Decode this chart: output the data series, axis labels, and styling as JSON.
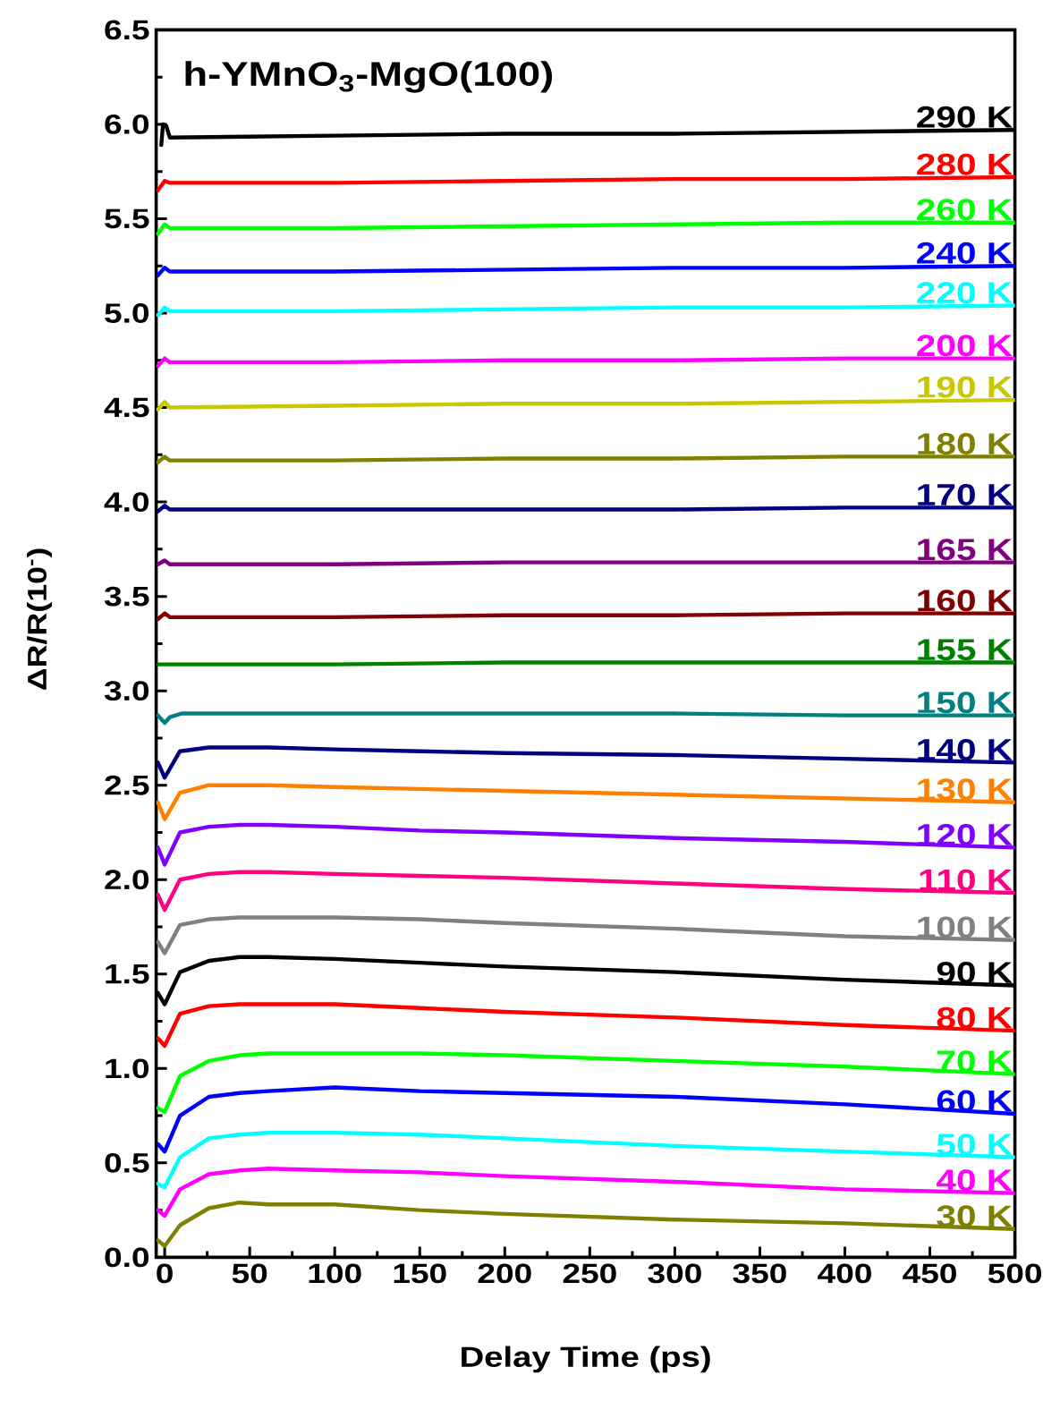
{
  "chart_data": {
    "type": "line",
    "title": "h-YMnO$_{3}$-MgO(100)",
    "xlabel": "Delay Time (ps)",
    "ylabel": "ΔR/R(10$^{-}$)",
    "xlim": [
      -5,
      500
    ],
    "ylim": [
      0,
      6.5
    ],
    "xticks": [
      0,
      50,
      100,
      150,
      200,
      250,
      300,
      350,
      400,
      450,
      500
    ],
    "yticks": [
      {
        "value": 0,
        "label": "0.0"
      },
      0.5,
      {
        "value": 1,
        "label": "1.0"
      },
      1.5,
      {
        "value": 2,
        "label": "2.0"
      },
      2.5,
      {
        "value": 3,
        "label": "3.0"
      },
      3.5,
      {
        "value": 4,
        "label": "4.0"
      },
      4.5,
      {
        "value": 5,
        "label": "5.0"
      },
      5.5,
      {
        "value": 6,
        "label": "6.0"
      },
      6.5
    ],
    "series": [
      {
        "name": "290 K",
        "color": "#000000",
        "x": [
          -2,
          -1,
          1,
          3,
          100,
          200,
          300,
          400,
          500
        ],
        "values": [
          5.89,
          6.0,
          5.99,
          5.93,
          5.94,
          5.95,
          5.95,
          5.96,
          5.97
        ]
      },
      {
        "name": "280 K",
        "color": "#ff0000",
        "x": [
          -4,
          0,
          3,
          100,
          200,
          300,
          400,
          500
        ],
        "values": [
          5.65,
          5.7,
          5.69,
          5.69,
          5.7,
          5.71,
          5.71,
          5.72
        ]
      },
      {
        "name": "260 K",
        "color": "#00ff00",
        "x": [
          -4,
          0,
          3,
          100,
          200,
          300,
          400,
          500
        ],
        "values": [
          5.42,
          5.47,
          5.45,
          5.45,
          5.46,
          5.47,
          5.48,
          5.48
        ]
      },
      {
        "name": "240 K",
        "color": "#0000ff",
        "x": [
          -4,
          0,
          3,
          100,
          200,
          300,
          400,
          500
        ],
        "values": [
          5.2,
          5.24,
          5.22,
          5.22,
          5.23,
          5.24,
          5.24,
          5.25
        ]
      },
      {
        "name": "220 K",
        "color": "#00ffff",
        "x": [
          -4,
          0,
          3,
          100,
          200,
          300,
          400,
          500
        ],
        "values": [
          4.99,
          5.03,
          5.01,
          5.01,
          5.02,
          5.03,
          5.03,
          5.04
        ]
      },
      {
        "name": "200 K",
        "color": "#ff00ff",
        "x": [
          -4,
          0,
          3,
          100,
          200,
          300,
          400,
          500
        ],
        "values": [
          4.72,
          4.76,
          4.74,
          4.74,
          4.75,
          4.75,
          4.76,
          4.76
        ]
      },
      {
        "name": "190 K",
        "color": "#c8c800",
        "x": [
          -4,
          0,
          3,
          100,
          200,
          300,
          400,
          500
        ],
        "values": [
          4.49,
          4.53,
          4.5,
          4.51,
          4.52,
          4.52,
          4.53,
          4.54
        ]
      },
      {
        "name": "180 K",
        "color": "#808000",
        "x": [
          -4,
          0,
          3,
          100,
          200,
          300,
          400,
          500
        ],
        "values": [
          4.21,
          4.24,
          4.22,
          4.22,
          4.23,
          4.23,
          4.24,
          4.24
        ]
      },
      {
        "name": "170 K",
        "color": "#000080",
        "x": [
          -4,
          0,
          3,
          100,
          200,
          300,
          400,
          500
        ],
        "values": [
          3.95,
          3.98,
          3.96,
          3.96,
          3.96,
          3.96,
          3.97,
          3.97
        ]
      },
      {
        "name": "165 K",
        "color": "#800080",
        "x": [
          -4,
          0,
          3,
          100,
          200,
          300,
          400,
          500
        ],
        "values": [
          3.67,
          3.69,
          3.67,
          3.67,
          3.68,
          3.68,
          3.68,
          3.68
        ]
      },
      {
        "name": "160 K",
        "color": "#800000",
        "x": [
          -4,
          0,
          3,
          100,
          200,
          300,
          400,
          500
        ],
        "values": [
          3.38,
          3.41,
          3.39,
          3.39,
          3.4,
          3.4,
          3.41,
          3.41
        ]
      },
      {
        "name": "155 K",
        "color": "#008000",
        "x": [
          -4,
          0,
          3,
          100,
          200,
          300,
          400,
          500
        ],
        "values": [
          3.14,
          3.14,
          3.14,
          3.14,
          3.15,
          3.15,
          3.15,
          3.15
        ]
      },
      {
        "name": "150 K",
        "color": "#008080",
        "x": [
          -4,
          0,
          3,
          10,
          30,
          100,
          200,
          300,
          400,
          500
        ],
        "values": [
          2.87,
          2.83,
          2.86,
          2.88,
          2.88,
          2.88,
          2.88,
          2.88,
          2.87,
          2.87
        ]
      },
      {
        "name": "140 K",
        "color": "#000080",
        "x": [
          -4,
          0,
          9,
          26,
          44,
          61,
          100,
          150,
          200,
          300,
          400,
          500
        ],
        "values": [
          2.62,
          2.54,
          2.68,
          2.7,
          2.7,
          2.7,
          2.69,
          2.68,
          2.67,
          2.66,
          2.64,
          2.62
        ]
      },
      {
        "name": "130 K",
        "color": "#ff8000",
        "x": [
          -4,
          0,
          9,
          26,
          44,
          61,
          100,
          150,
          200,
          300,
          400,
          500
        ],
        "values": [
          2.41,
          2.32,
          2.46,
          2.5,
          2.5,
          2.5,
          2.49,
          2.48,
          2.47,
          2.45,
          2.43,
          2.41
        ]
      },
      {
        "name": "120 K",
        "color": "#8000ff",
        "x": [
          -4,
          0,
          9,
          26,
          44,
          61,
          100,
          150,
          200,
          300,
          400,
          500
        ],
        "values": [
          2.17,
          2.08,
          2.25,
          2.28,
          2.29,
          2.29,
          2.28,
          2.26,
          2.25,
          2.22,
          2.2,
          2.17
        ]
      },
      {
        "name": "110 K",
        "color": "#ff0080",
        "x": [
          -4,
          0,
          9,
          26,
          44,
          61,
          100,
          150,
          200,
          300,
          400,
          500
        ],
        "values": [
          1.92,
          1.84,
          2.0,
          2.03,
          2.04,
          2.04,
          2.03,
          2.02,
          2.01,
          1.98,
          1.95,
          1.93
        ]
      },
      {
        "name": "100 K",
        "color": "#808080",
        "x": [
          -4,
          0,
          9,
          26,
          44,
          61,
          100,
          150,
          200,
          300,
          400,
          500
        ],
        "values": [
          1.67,
          1.61,
          1.76,
          1.79,
          1.8,
          1.8,
          1.8,
          1.79,
          1.77,
          1.74,
          1.7,
          1.68
        ]
      },
      {
        "name": "90 K",
        "color": "#000000",
        "x": [
          -4,
          0,
          9,
          26,
          44,
          61,
          100,
          150,
          200,
          300,
          400,
          500
        ],
        "values": [
          1.4,
          1.34,
          1.51,
          1.57,
          1.59,
          1.59,
          1.58,
          1.56,
          1.54,
          1.51,
          1.47,
          1.44
        ]
      },
      {
        "name": "80 K",
        "color": "#ff0000",
        "x": [
          -4,
          0,
          9,
          26,
          44,
          61,
          100,
          150,
          200,
          300,
          400,
          500
        ],
        "values": [
          1.16,
          1.12,
          1.29,
          1.33,
          1.34,
          1.34,
          1.34,
          1.32,
          1.3,
          1.27,
          1.23,
          1.2
        ]
      },
      {
        "name": "70 K",
        "color": "#00ff00",
        "x": [
          -4,
          0,
          9,
          26,
          44,
          61,
          100,
          150,
          200,
          300,
          400,
          500
        ],
        "values": [
          0.79,
          0.77,
          0.96,
          1.04,
          1.07,
          1.08,
          1.08,
          1.08,
          1.07,
          1.04,
          1.01,
          0.97
        ]
      },
      {
        "name": "60 K",
        "color": "#0000ff",
        "x": [
          -4,
          0,
          9,
          26,
          44,
          61,
          100,
          150,
          200,
          300,
          400,
          500
        ],
        "values": [
          0.6,
          0.56,
          0.75,
          0.85,
          0.87,
          0.88,
          0.9,
          0.88,
          0.87,
          0.85,
          0.81,
          0.76
        ]
      },
      {
        "name": "50 K",
        "color": "#00ffff",
        "x": [
          -4,
          0,
          9,
          26,
          44,
          61,
          100,
          150,
          200,
          300,
          400,
          500
        ],
        "values": [
          0.39,
          0.37,
          0.53,
          0.63,
          0.65,
          0.66,
          0.66,
          0.65,
          0.63,
          0.59,
          0.56,
          0.53
        ]
      },
      {
        "name": "40 K",
        "color": "#ff00ff",
        "x": [
          -4,
          0,
          9,
          26,
          44,
          61,
          100,
          150,
          200,
          300,
          400,
          500
        ],
        "values": [
          0.25,
          0.22,
          0.36,
          0.44,
          0.46,
          0.47,
          0.46,
          0.45,
          0.43,
          0.4,
          0.36,
          0.34
        ]
      },
      {
        "name": "30 K",
        "color": "#808000",
        "x": [
          -4,
          0,
          9,
          26,
          44,
          61,
          100,
          150,
          200,
          300,
          400,
          500
        ],
        "values": [
          0.09,
          0.06,
          0.17,
          0.26,
          0.29,
          0.28,
          0.28,
          0.25,
          0.23,
          0.2,
          0.18,
          0.15
        ]
      }
    ]
  }
}
